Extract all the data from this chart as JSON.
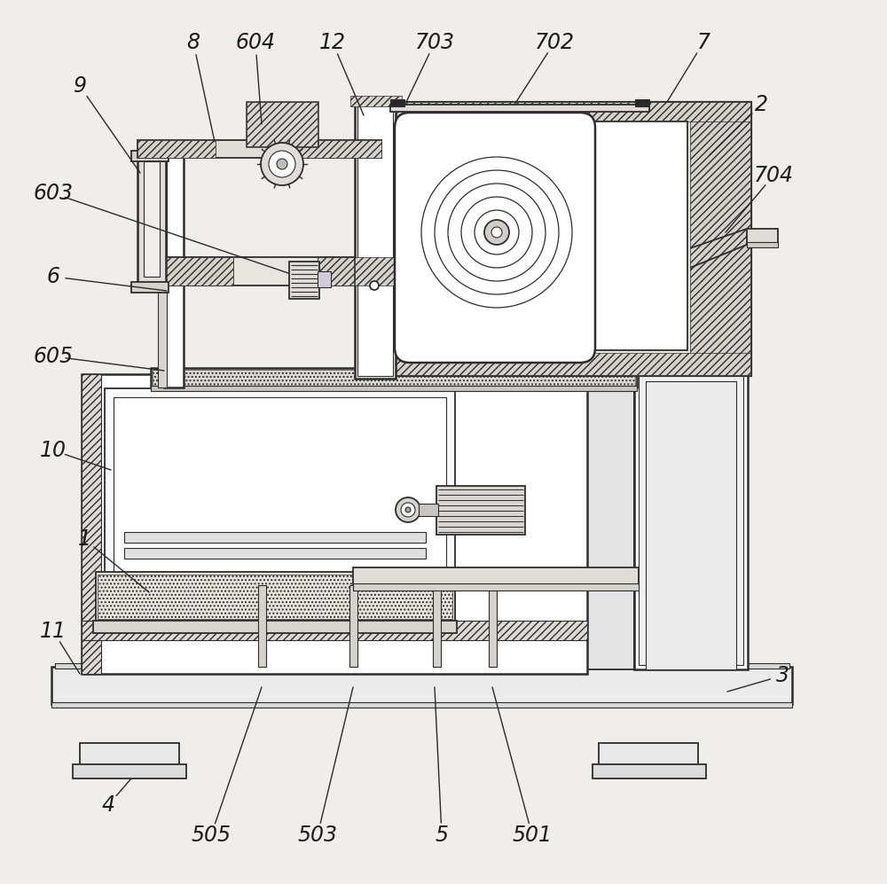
{
  "bg_color": "#f0eeeb",
  "line_color": "#2d2d2d",
  "figsize": [
    10.0,
    9.97
  ],
  "dpi": 100,
  "annotations": [
    [
      "8",
      218,
      48,
      242,
      160
    ],
    [
      "9",
      90,
      97,
      158,
      195
    ],
    [
      "604",
      288,
      48,
      295,
      140
    ],
    [
      "12",
      375,
      48,
      410,
      130
    ],
    [
      "703",
      490,
      48,
      458,
      115
    ],
    [
      "702",
      625,
      48,
      580,
      118
    ],
    [
      "7",
      793,
      48,
      752,
      115
    ],
    [
      "2",
      858,
      118,
      800,
      175
    ],
    [
      "704",
      872,
      198,
      818,
      262
    ],
    [
      "603",
      60,
      218,
      325,
      308
    ],
    [
      "6",
      60,
      312,
      188,
      328
    ],
    [
      "605",
      60,
      402,
      185,
      418
    ],
    [
      "10",
      60,
      508,
      125,
      530
    ],
    [
      "1",
      95,
      608,
      168,
      668
    ],
    [
      "11",
      60,
      712,
      90,
      760
    ],
    [
      "3",
      882,
      762,
      820,
      780
    ],
    [
      "4",
      122,
      908,
      148,
      878
    ],
    [
      "505",
      238,
      942,
      295,
      775
    ],
    [
      "503",
      358,
      942,
      398,
      775
    ],
    [
      "5",
      498,
      942,
      490,
      775
    ],
    [
      "501",
      600,
      942,
      555,
      775
    ]
  ]
}
